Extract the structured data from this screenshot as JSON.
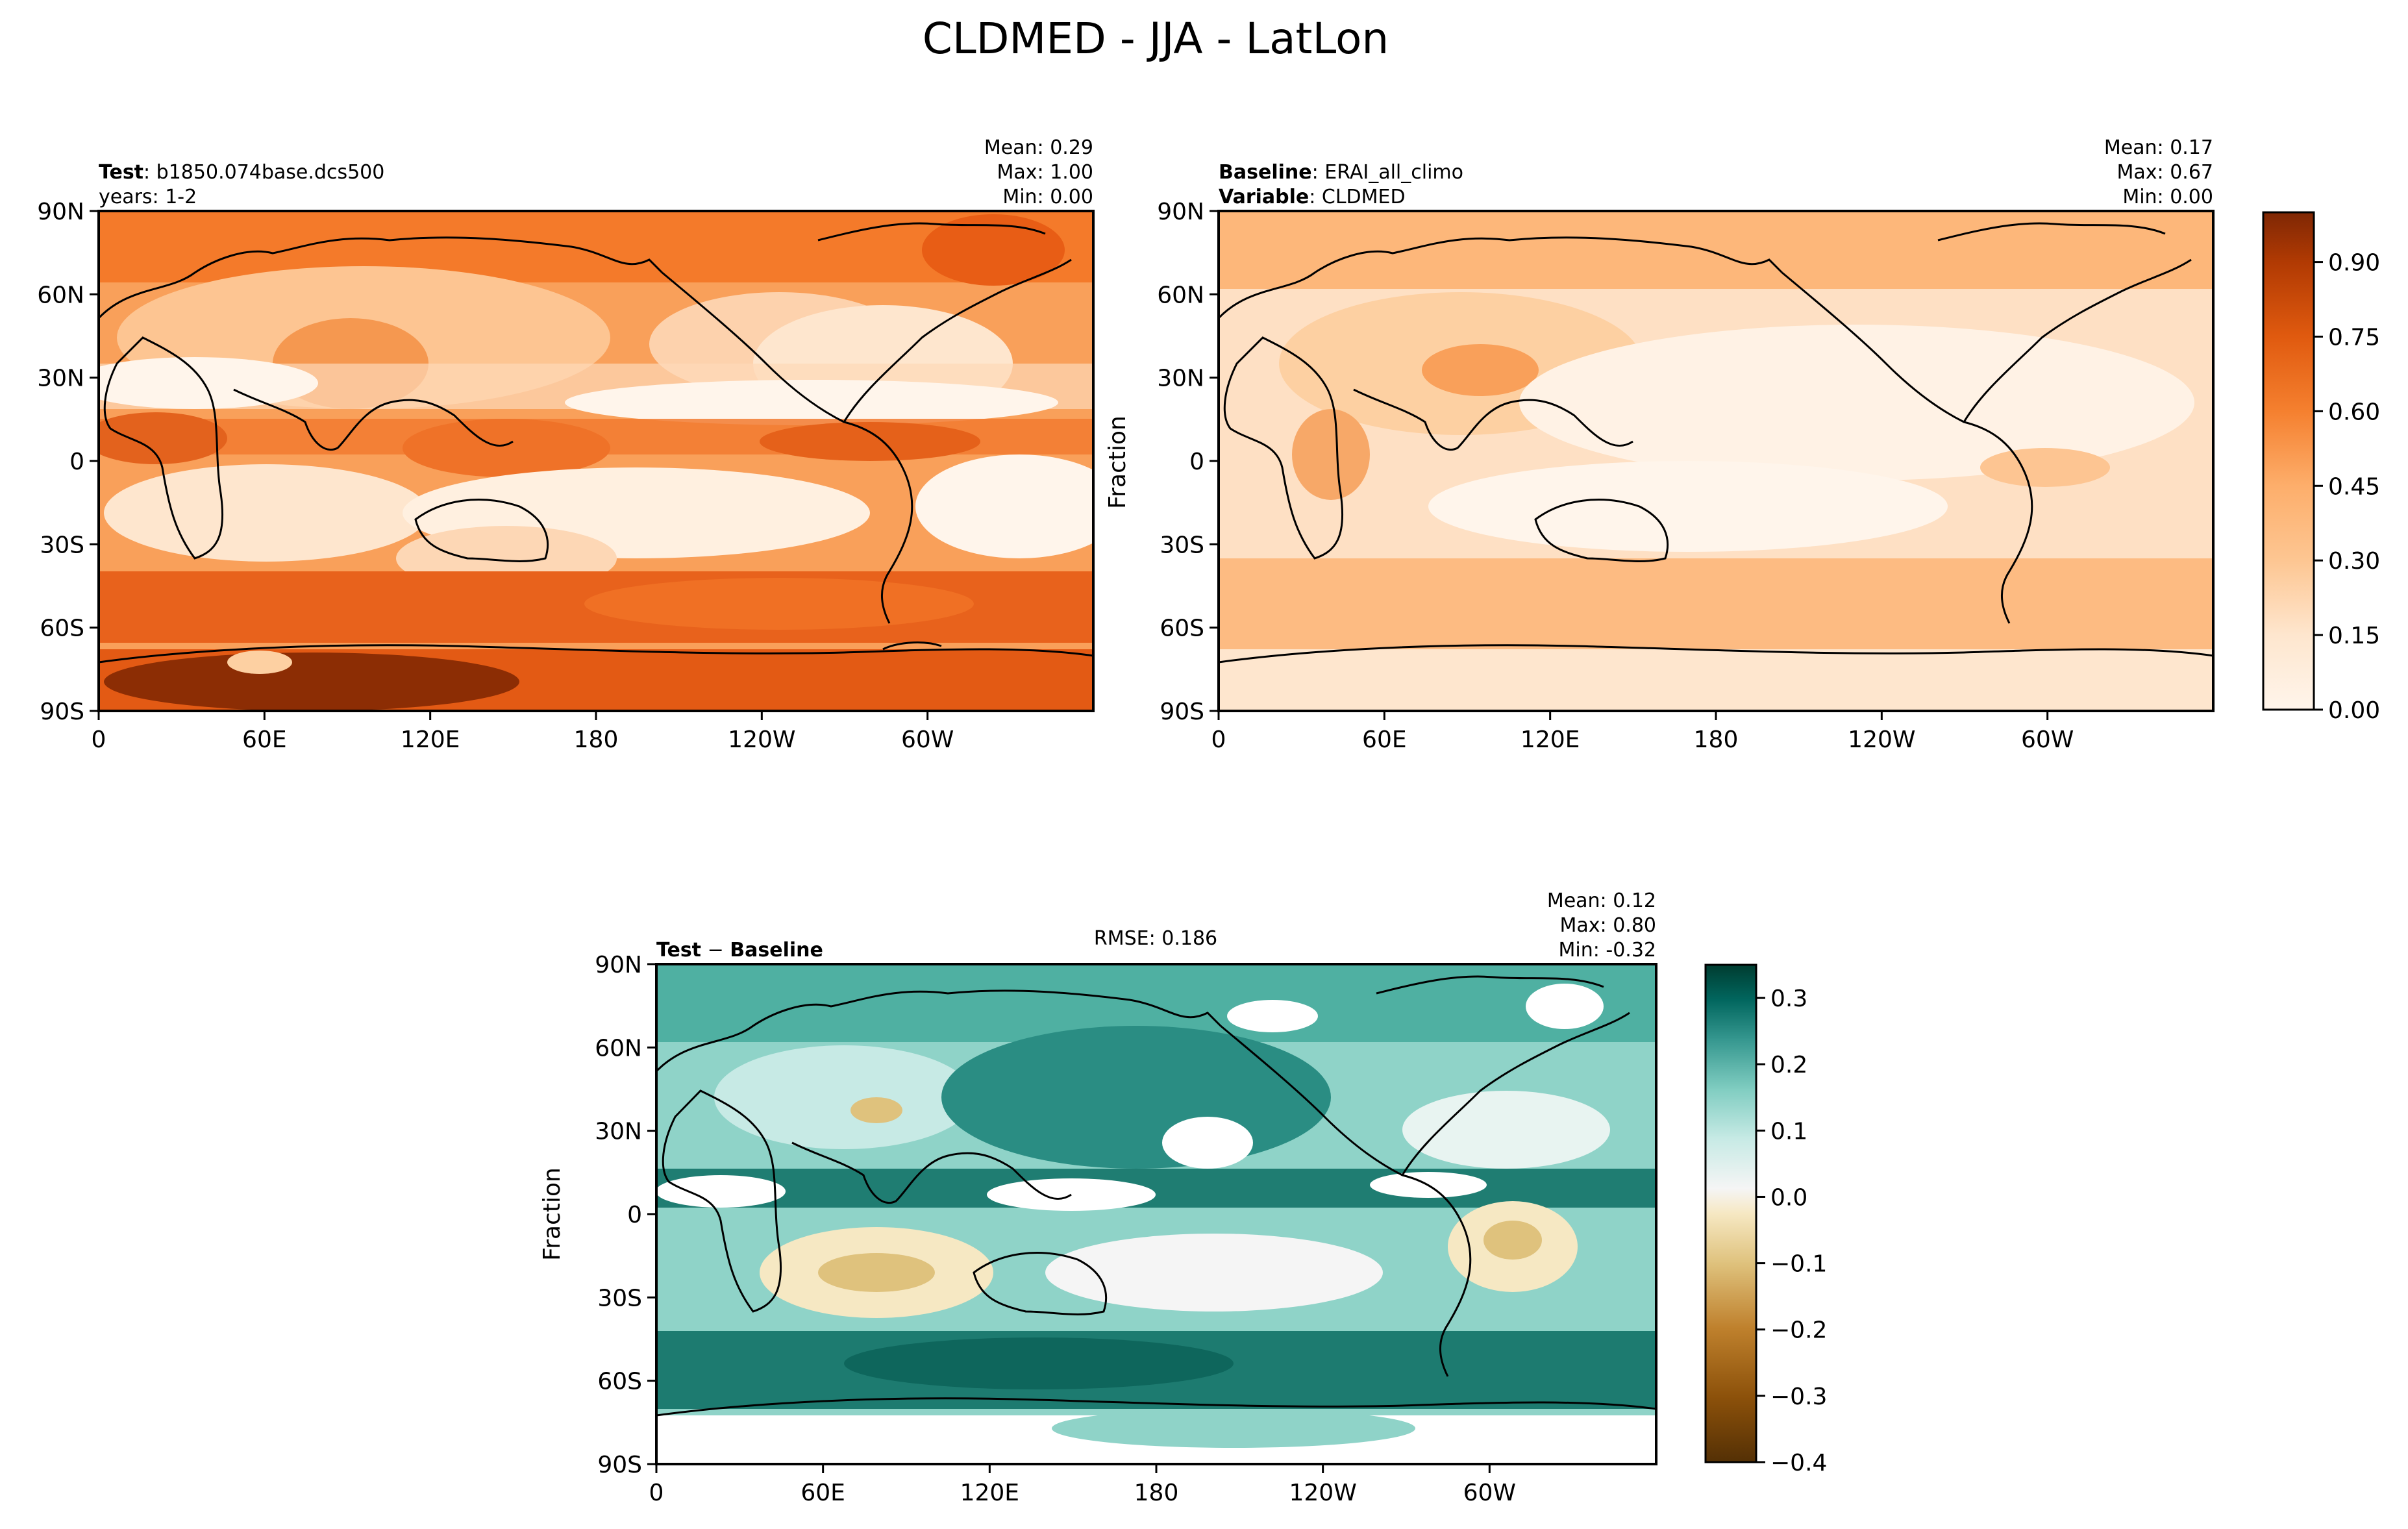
{
  "figure": {
    "title": "CLDMED - JJA - LatLon"
  },
  "chart_data": [
    {
      "type": "heatmap",
      "panel": "test",
      "header_left": [
        {
          "bold": "Test",
          "text": ": b1850.074base.dcs500"
        },
        {
          "bold": "",
          "text": "years: 1-2"
        }
      ],
      "header_center": "",
      "stats": [
        "Mean:  0.29",
        "Max:  1.00",
        "Min:  0.00"
      ],
      "xticks": [
        "0",
        "60E",
        "120E",
        "180",
        "120W",
        "60W"
      ],
      "yticks": [
        "90N",
        "60N",
        "30N",
        "0",
        "30S",
        "60S",
        "90S"
      ],
      "ylabel": "",
      "xlim": [
        0,
        360
      ],
      "ylim": [
        -90,
        90
      ],
      "colormap": "Oranges",
      "mean": 0.29,
      "max": 1.0,
      "min": 0.0
    },
    {
      "type": "heatmap",
      "panel": "baseline",
      "header_left": [
        {
          "bold": "Baseline",
          "text": ": ERAI_all_climo"
        },
        {
          "bold": "Variable",
          "text": ": CLDMED"
        }
      ],
      "header_center": "",
      "stats": [
        "Mean:  0.17",
        "Max:  0.67",
        "Min:  0.00"
      ],
      "xticks": [
        "0",
        "60E",
        "120E",
        "180",
        "120W",
        "60W"
      ],
      "yticks": [
        "90N",
        "60N",
        "30N",
        "0",
        "30S",
        "60S",
        "90S"
      ],
      "ylabel": "Fraction",
      "xlim": [
        0,
        360
      ],
      "ylim": [
        -90,
        90
      ],
      "colormap": "Oranges",
      "mean": 0.17,
      "max": 0.67,
      "min": 0.0,
      "colorbar": {
        "ticks": [
          "0.00",
          "0.15",
          "0.30",
          "0.45",
          "0.60",
          "0.75",
          "0.90"
        ],
        "range": [
          0,
          1
        ]
      }
    },
    {
      "type": "heatmap",
      "panel": "difference",
      "header_left": [
        {
          "bold": "Test",
          "text": " − ",
          "bold2": "Baseline"
        }
      ],
      "header_center": "RMSE: 0.186",
      "stats": [
        "Mean:  0.12",
        "Max:  0.80",
        "Min: -0.32"
      ],
      "xticks": [
        "0",
        "60E",
        "120E",
        "180",
        "120W",
        "60W"
      ],
      "yticks": [
        "90N",
        "60N",
        "30N",
        "0",
        "30S",
        "60S",
        "90S"
      ],
      "ylabel": "Fraction",
      "xlim": [
        0,
        360
      ],
      "ylim": [
        -90,
        90
      ],
      "colormap": "BrBG",
      "mean": 0.12,
      "max": 0.8,
      "min": -0.32,
      "rmse": 0.186,
      "colorbar": {
        "ticks": [
          "0.3",
          "0.2",
          "0.1",
          "0.0",
          "−0.1",
          "−0.2",
          "−0.3",
          "−0.4"
        ],
        "range": [
          -0.4,
          0.35
        ]
      }
    }
  ],
  "colors": {
    "oranges": [
      "#fff5eb",
      "#fee6ce",
      "#fdd0a2",
      "#fdae6b",
      "#fd8d3c",
      "#f16913",
      "#d94801",
      "#a63603",
      "#7f2704"
    ],
    "brbg": [
      "#543005",
      "#8c510a",
      "#bf812d",
      "#dfc27d",
      "#f6e8c3",
      "#f5f5f5",
      "#c7eae5",
      "#80cdc1",
      "#35978f",
      "#01665e",
      "#003c30"
    ]
  }
}
